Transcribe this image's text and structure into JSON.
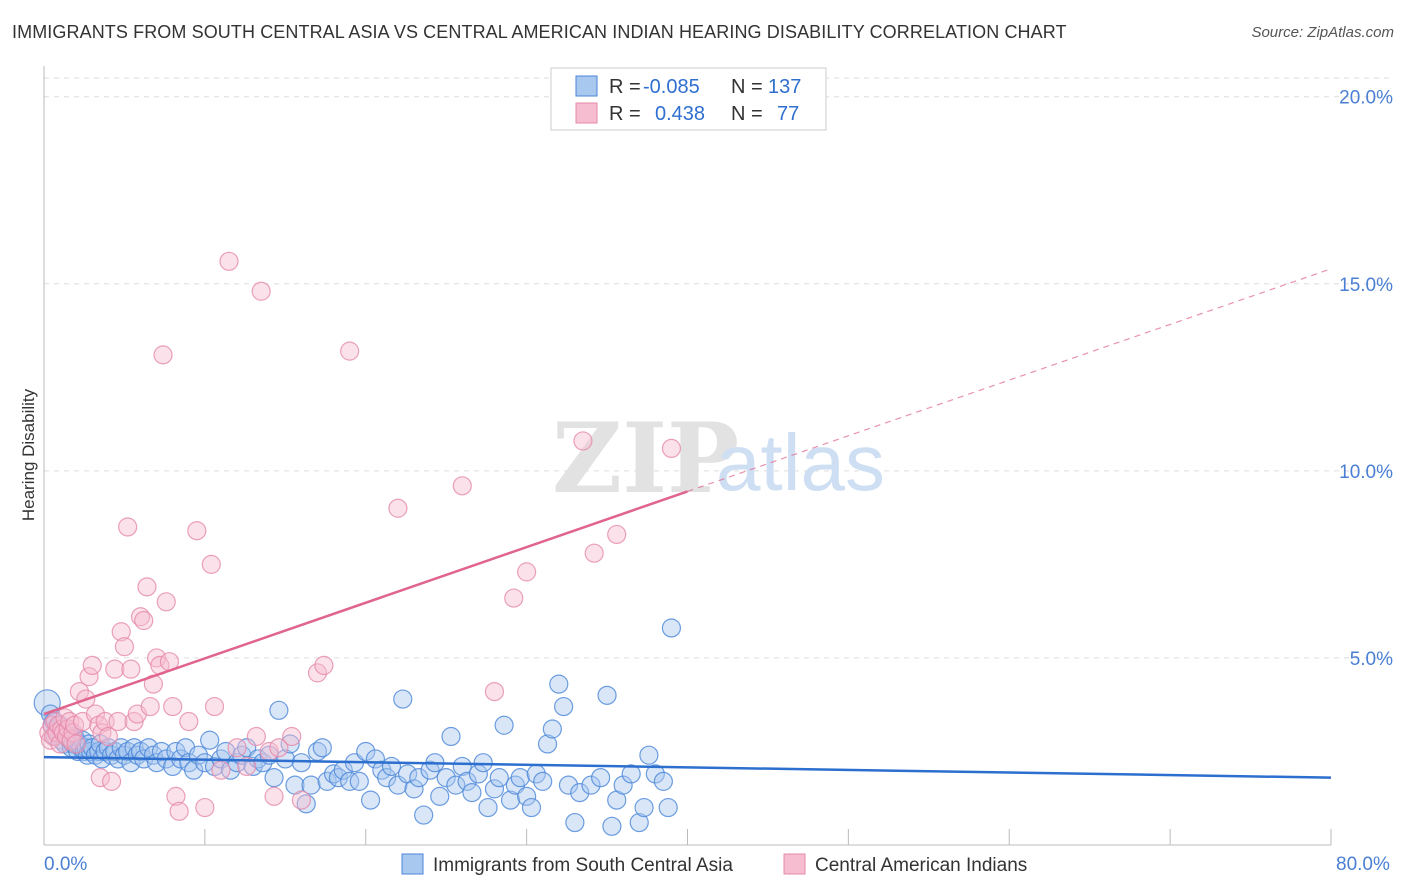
{
  "header": {
    "title": "IMMIGRANTS FROM SOUTH CENTRAL ASIA VS CENTRAL AMERICAN INDIAN HEARING DISABILITY CORRELATION CHART",
    "source": "Source: ZipAtlas.com"
  },
  "watermark": {
    "zip": "ZIP",
    "atlas": "atlas"
  },
  "stats": {
    "row1": {
      "r_label": "R =",
      "r_value": "-0.085",
      "n_label": "N =",
      "n_value": "137"
    },
    "row2": {
      "r_label": "R =",
      "r_value": "0.438",
      "n_label": "N =",
      "n_value": "77"
    }
  },
  "legend": {
    "series1": "Immigrants from South Central Asia",
    "series2": "Central American Indians"
  },
  "colors": {
    "blue_fill": "#a9c8f0",
    "blue_stroke": "#4a86d8",
    "blue_line": "#2c6fcf",
    "pink_fill": "#f6bcd0",
    "pink_stroke": "#e58aaa",
    "pink_line": "#e0648c",
    "grid": "#dddddd",
    "tick_text": "#4a7fd4"
  },
  "chart_data": {
    "type": "scatter",
    "title": "IMMIGRANTS FROM SOUTH CENTRAL ASIA VS CENTRAL AMERICAN INDIAN HEARING DISABILITY CORRELATION CHART",
    "xlabel": "",
    "ylabel": "Hearing Disability",
    "xlim": [
      0,
      80
    ],
    "ylim": [
      0,
      20
    ],
    "x_tick_labels": [
      "0.0%",
      "80.0%"
    ],
    "y_ticks": [
      5,
      10,
      15,
      20
    ],
    "y_tick_labels": [
      "5.0%",
      "10.0%",
      "15.0%",
      "20.0%"
    ],
    "grid": true,
    "legend_position": "bottom",
    "series": [
      {
        "name": "Immigrants from South Central Asia",
        "color": "#a9c8f0",
        "trend": {
          "x": [
            0,
            80
          ],
          "y": [
            2.35,
            1.8
          ],
          "solid_until": 80
        },
        "points": [
          [
            0.2,
            3.8
          ],
          [
            0.4,
            3.5
          ],
          [
            0.5,
            3.2
          ],
          [
            0.6,
            3.3
          ],
          [
            0.7,
            2.9
          ],
          [
            0.8,
            3.1
          ],
          [
            0.9,
            3.0
          ],
          [
            1.0,
            3.2
          ],
          [
            1.1,
            2.8
          ],
          [
            1.2,
            3.0
          ],
          [
            1.3,
            2.7
          ],
          [
            1.4,
            3.1
          ],
          [
            1.5,
            2.9
          ],
          [
            1.6,
            2.8
          ],
          [
            1.7,
            2.6
          ],
          [
            1.8,
            2.7
          ],
          [
            1.9,
            2.9
          ],
          [
            2.0,
            2.8
          ],
          [
            2.1,
            2.5
          ],
          [
            2.2,
            2.7
          ],
          [
            2.3,
            2.6
          ],
          [
            2.4,
            2.8
          ],
          [
            2.5,
            2.5
          ],
          [
            2.6,
            2.6
          ],
          [
            2.7,
            2.4
          ],
          [
            2.8,
            2.7
          ],
          [
            2.9,
            2.5
          ],
          [
            3.0,
            2.6
          ],
          [
            3.2,
            2.4
          ],
          [
            3.4,
            2.5
          ],
          [
            3.5,
            2.7
          ],
          [
            3.6,
            2.3
          ],
          [
            3.8,
            2.5
          ],
          [
            4.0,
            2.6
          ],
          [
            4.2,
            2.4
          ],
          [
            4.4,
            2.5
          ],
          [
            4.6,
            2.3
          ],
          [
            4.8,
            2.6
          ],
          [
            5.0,
            2.4
          ],
          [
            5.2,
            2.5
          ],
          [
            5.4,
            2.2
          ],
          [
            5.6,
            2.6
          ],
          [
            5.8,
            2.4
          ],
          [
            6.0,
            2.5
          ],
          [
            6.2,
            2.3
          ],
          [
            6.5,
            2.6
          ],
          [
            6.8,
            2.4
          ],
          [
            7.0,
            2.2
          ],
          [
            7.3,
            2.5
          ],
          [
            7.6,
            2.3
          ],
          [
            8.0,
            2.1
          ],
          [
            8.2,
            2.5
          ],
          [
            8.5,
            2.3
          ],
          [
            8.8,
            2.6
          ],
          [
            9.0,
            2.2
          ],
          [
            9.3,
            2.0
          ],
          [
            9.6,
            2.4
          ],
          [
            10.0,
            2.2
          ],
          [
            10.3,
            2.8
          ],
          [
            10.6,
            2.1
          ],
          [
            11.0,
            2.3
          ],
          [
            11.3,
            2.5
          ],
          [
            11.6,
            2.0
          ],
          [
            12.0,
            2.2
          ],
          [
            12.3,
            2.4
          ],
          [
            12.6,
            2.6
          ],
          [
            13.0,
            2.1
          ],
          [
            13.3,
            2.3
          ],
          [
            13.6,
            2.2
          ],
          [
            14.0,
            2.4
          ],
          [
            14.3,
            1.8
          ],
          [
            14.6,
            3.6
          ],
          [
            15.0,
            2.3
          ],
          [
            15.3,
            2.7
          ],
          [
            15.6,
            1.6
          ],
          [
            16.0,
            2.2
          ],
          [
            16.3,
            1.1
          ],
          [
            16.6,
            1.6
          ],
          [
            17.0,
            2.5
          ],
          [
            17.3,
            2.6
          ],
          [
            17.6,
            1.7
          ],
          [
            18.0,
            1.9
          ],
          [
            18.3,
            1.8
          ],
          [
            18.6,
            2.0
          ],
          [
            19.0,
            1.7
          ],
          [
            19.3,
            2.2
          ],
          [
            19.6,
            1.7
          ],
          [
            20.0,
            2.5
          ],
          [
            20.3,
            1.2
          ],
          [
            20.6,
            2.3
          ],
          [
            21.0,
            2.0
          ],
          [
            21.3,
            1.8
          ],
          [
            21.6,
            2.1
          ],
          [
            22.0,
            1.6
          ],
          [
            22.3,
            3.9
          ],
          [
            22.6,
            1.9
          ],
          [
            23.0,
            1.5
          ],
          [
            23.3,
            1.8
          ],
          [
            23.6,
            0.8
          ],
          [
            24.0,
            2.0
          ],
          [
            24.3,
            2.2
          ],
          [
            24.6,
            1.3
          ],
          [
            25.0,
            1.8
          ],
          [
            25.3,
            2.9
          ],
          [
            25.6,
            1.6
          ],
          [
            26.0,
            2.1
          ],
          [
            26.3,
            1.7
          ],
          [
            26.6,
            1.4
          ],
          [
            27.0,
            1.9
          ],
          [
            27.3,
            2.2
          ],
          [
            27.6,
            1.0
          ],
          [
            28.0,
            1.5
          ],
          [
            28.3,
            1.8
          ],
          [
            28.6,
            3.2
          ],
          [
            29.0,
            1.2
          ],
          [
            29.3,
            1.6
          ],
          [
            29.6,
            1.8
          ],
          [
            30.0,
            1.3
          ],
          [
            30.3,
            1.0
          ],
          [
            30.6,
            1.9
          ],
          [
            31.0,
            1.7
          ],
          [
            31.3,
            2.7
          ],
          [
            31.6,
            3.1
          ],
          [
            32.0,
            4.3
          ],
          [
            32.3,
            3.7
          ],
          [
            32.6,
            1.6
          ],
          [
            33.0,
            0.6
          ],
          [
            33.3,
            1.4
          ],
          [
            34.0,
            1.6
          ],
          [
            34.6,
            1.8
          ],
          [
            35.0,
            4.0
          ],
          [
            35.3,
            0.5
          ],
          [
            35.6,
            1.2
          ],
          [
            36.0,
            1.6
          ],
          [
            36.5,
            1.9
          ],
          [
            37.0,
            0.6
          ],
          [
            37.3,
            1.0
          ],
          [
            37.6,
            2.4
          ],
          [
            38.0,
            1.9
          ],
          [
            38.5,
            1.7
          ],
          [
            38.8,
            1.0
          ],
          [
            39.0,
            5.8
          ]
        ]
      },
      {
        "name": "Central American Indians",
        "color": "#f6bcd0",
        "trend": {
          "x": [
            0,
            80
          ],
          "y": [
            3.5,
            15.4
          ],
          "solid_until": 40
        },
        "points": [
          [
            0.3,
            3.0
          ],
          [
            0.4,
            2.8
          ],
          [
            0.5,
            3.2
          ],
          [
            0.6,
            2.9
          ],
          [
            0.7,
            3.3
          ],
          [
            0.8,
            3.0
          ],
          [
            0.9,
            3.2
          ],
          [
            1.0,
            2.7
          ],
          [
            1.1,
            3.1
          ],
          [
            1.2,
            3.0
          ],
          [
            1.3,
            3.4
          ],
          [
            1.4,
            2.9
          ],
          [
            1.5,
            3.1
          ],
          [
            1.6,
            3.3
          ],
          [
            1.7,
            2.8
          ],
          [
            1.8,
            3.0
          ],
          [
            1.9,
            3.2
          ],
          [
            2.0,
            2.7
          ],
          [
            2.2,
            4.1
          ],
          [
            2.4,
            3.3
          ],
          [
            2.6,
            3.9
          ],
          [
            2.8,
            4.5
          ],
          [
            3.0,
            4.8
          ],
          [
            3.2,
            3.5
          ],
          [
            3.4,
            3.2
          ],
          [
            3.5,
            1.8
          ],
          [
            3.6,
            3.0
          ],
          [
            3.8,
            3.3
          ],
          [
            4.0,
            2.9
          ],
          [
            4.2,
            1.7
          ],
          [
            4.4,
            4.7
          ],
          [
            4.6,
            3.3
          ],
          [
            4.8,
            5.7
          ],
          [
            5.0,
            5.3
          ],
          [
            5.2,
            8.5
          ],
          [
            5.4,
            4.7
          ],
          [
            5.6,
            3.3
          ],
          [
            5.8,
            3.5
          ],
          [
            6.0,
            6.1
          ],
          [
            6.2,
            6.0
          ],
          [
            6.4,
            6.9
          ],
          [
            6.6,
            3.7
          ],
          [
            6.8,
            4.3
          ],
          [
            7.0,
            5.0
          ],
          [
            7.2,
            4.8
          ],
          [
            7.4,
            13.1
          ],
          [
            7.6,
            6.5
          ],
          [
            7.8,
            4.9
          ],
          [
            8.0,
            3.7
          ],
          [
            8.2,
            1.3
          ],
          [
            8.4,
            0.9
          ],
          [
            9.0,
            3.3
          ],
          [
            9.5,
            8.4
          ],
          [
            10.0,
            1.0
          ],
          [
            10.4,
            7.5
          ],
          [
            10.6,
            3.7
          ],
          [
            11.0,
            2.0
          ],
          [
            11.5,
            15.6
          ],
          [
            12.0,
            2.6
          ],
          [
            12.6,
            2.1
          ],
          [
            13.2,
            2.9
          ],
          [
            13.5,
            14.8
          ],
          [
            14.0,
            2.5
          ],
          [
            14.3,
            1.3
          ],
          [
            14.6,
            2.6
          ],
          [
            15.4,
            2.9
          ],
          [
            16.0,
            1.2
          ],
          [
            17.0,
            4.6
          ],
          [
            17.4,
            4.8
          ],
          [
            19.0,
            13.2
          ],
          [
            22.0,
            9.0
          ],
          [
            26.0,
            9.6
          ],
          [
            28.0,
            4.1
          ],
          [
            29.2,
            6.6
          ],
          [
            30.0,
            7.3
          ],
          [
            33.5,
            10.8
          ],
          [
            34.2,
            7.8
          ],
          [
            35.6,
            8.3
          ],
          [
            39.0,
            10.6
          ]
        ]
      }
    ]
  }
}
